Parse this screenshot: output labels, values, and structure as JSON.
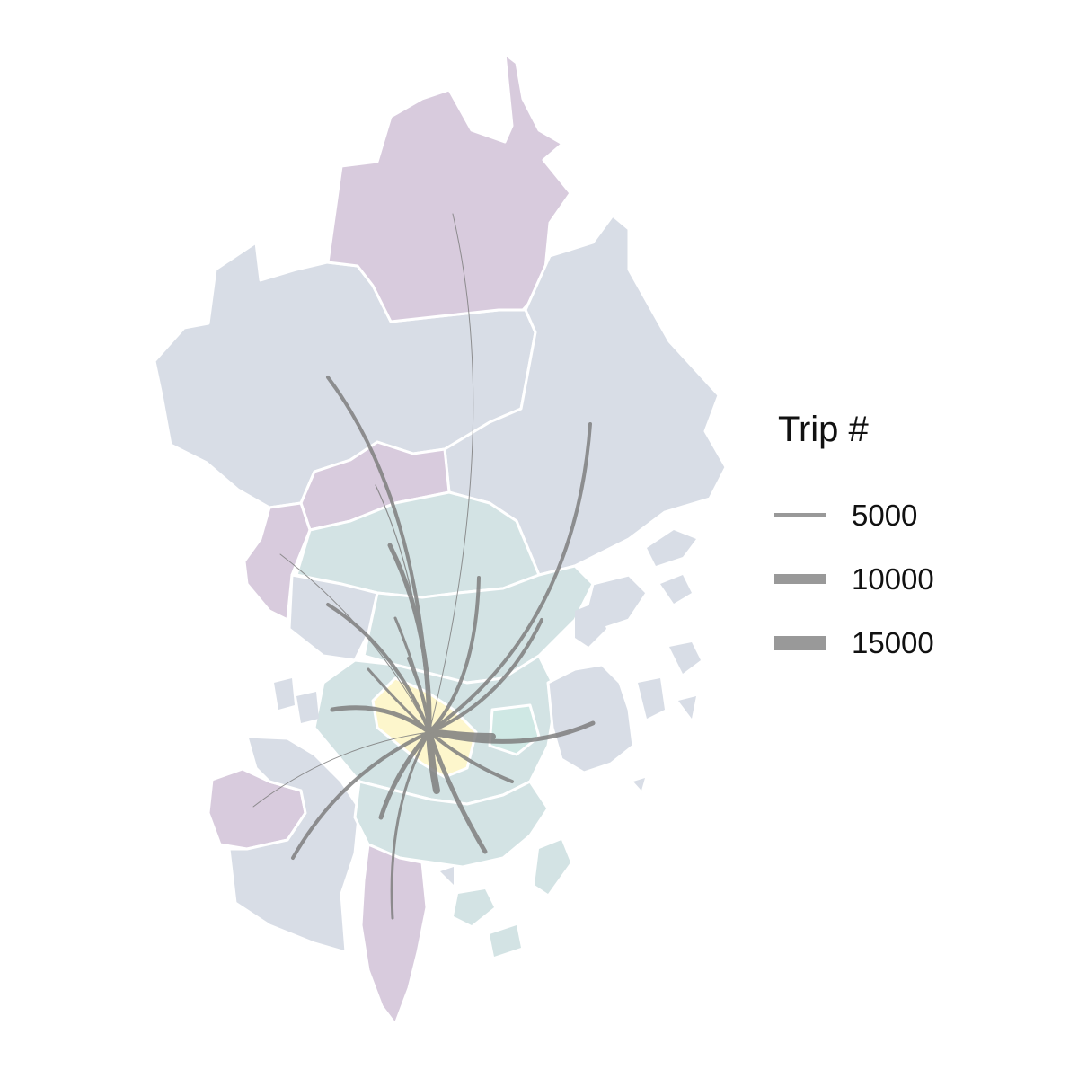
{
  "legend": {
    "title": "Trip #",
    "items": [
      {
        "label": "5000",
        "value": 5000
      },
      {
        "label": "10000",
        "value": 10000
      },
      {
        "label": "15000",
        "value": 15000
      }
    ]
  },
  "colors": {
    "background": "#ffffff",
    "border": "#ffffff",
    "flow_line": "#7f7f7f",
    "legend_line": "#999999",
    "fill_blue_gray": "#d8dde6",
    "fill_purple": "#d8cbdd",
    "fill_teal": "#d3e3e4",
    "fill_mint": "#cfe8e4",
    "fill_yellow": "#fdf6cc"
  }
}
